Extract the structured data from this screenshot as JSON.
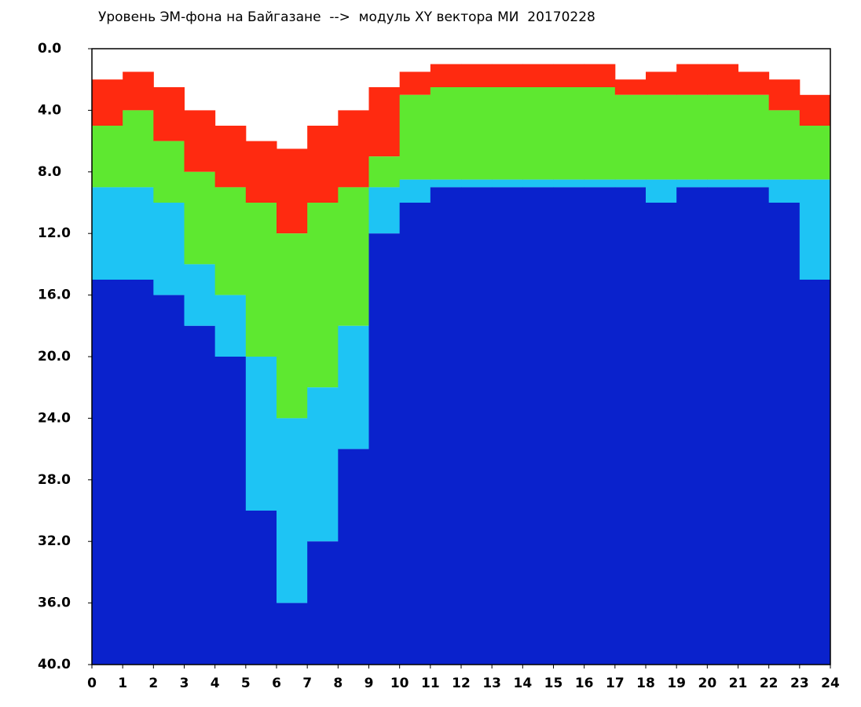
{
  "chart_data": {
    "type": "spectrogram",
    "title": "Уровень ЭМ-фона на Байгазане  -->  модуль XY вектора МИ  20170228",
    "x": [
      0,
      1,
      2,
      3,
      4,
      5,
      6,
      7,
      8,
      9,
      10,
      11,
      12,
      13,
      14,
      15,
      16,
      17,
      18,
      19,
      20,
      21,
      22,
      23
    ],
    "top": [
      2,
      1.5,
      2.5,
      4,
      5,
      6,
      6.5,
      5,
      4,
      2.5,
      1.5,
      1,
      1,
      1,
      1,
      1,
      1,
      2,
      1.5,
      1,
      1,
      1.5,
      2,
      3
    ],
    "red_end": [
      5,
      4,
      6,
      8,
      9,
      10,
      12,
      10,
      9,
      7,
      3,
      2.5,
      2.5,
      2.5,
      2.5,
      2.5,
      2.5,
      3,
      3,
      3,
      3,
      3,
      4,
      5
    ],
    "green_end": [
      9,
      9,
      10,
      14,
      16,
      20,
      24,
      22,
      18,
      9,
      8.5,
      8.5,
      8.5,
      8.5,
      8.5,
      8.5,
      8.5,
      8.5,
      8.5,
      8.5,
      8.5,
      8.5,
      8.5,
      8.5
    ],
    "cyan_end": [
      15,
      15,
      16,
      18,
      20,
      30,
      36,
      32,
      26,
      12,
      10,
      9,
      9,
      9,
      9,
      9,
      9,
      9,
      10,
      9,
      9,
      9,
      10,
      15
    ],
    "colors": [
      "#ff2a10",
      "#5ee830",
      "#1ec4f4",
      "#0a22cc"
    ],
    "xlim": [
      0,
      24
    ],
    "ylim": [
      0,
      40
    ],
    "xticks": [
      0,
      1,
      2,
      3,
      4,
      5,
      6,
      7,
      8,
      9,
      10,
      11,
      12,
      13,
      14,
      15,
      16,
      17,
      18,
      19,
      20,
      21,
      22,
      23,
      24
    ],
    "yticks": [
      {
        "value": 0,
        "label": "0.0"
      },
      {
        "value": 4,
        "label": "4.0"
      },
      {
        "value": 8,
        "label": "8.0"
      },
      {
        "value": 12,
        "label": "12.0"
      },
      {
        "value": 16,
        "label": "16.0"
      },
      {
        "value": 20,
        "label": "20.0"
      },
      {
        "value": 24,
        "label": "24.0"
      },
      {
        "value": 28,
        "label": "28.0"
      },
      {
        "value": 32,
        "label": "32.0"
      },
      {
        "value": 36,
        "label": "36.0"
      },
      {
        "value": 40,
        "label": "40.0"
      }
    ]
  }
}
